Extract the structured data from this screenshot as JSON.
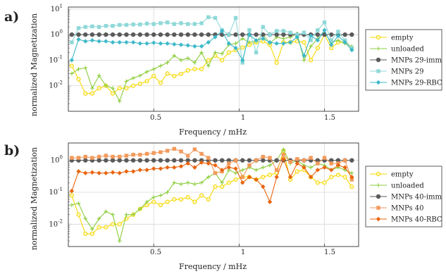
{
  "panels": [
    {
      "panel_label": "a)",
      "xlabel": "Frequency / mHz",
      "ylabel": "normalized Magnetization",
      "x_ticks": [
        "0.5",
        "1",
        "1.5"
      ],
      "y_ticks": [
        "10^1",
        "10^0",
        "10^-1",
        "10^-2"
      ]
    },
    {
      "panel_label": "b)",
      "xlabel": "Frequency / mHz",
      "ylabel": "normalized Magnetization",
      "x_ticks": [
        "0.5",
        "1",
        "1.5"
      ],
      "y_ticks": [
        "10^0",
        "10^-1",
        "10^-2"
      ]
    }
  ],
  "chart_data": [
    {
      "type": "line",
      "title": "",
      "xlabel": "Frequency / mHz",
      "ylabel": "normalized Magnetization",
      "yscale": "log",
      "xlim": [
        0,
        1.7
      ],
      "ylim": [
        0.001,
        12
      ],
      "grid": true,
      "legend_position": "right",
      "x": [
        0.02,
        0.06,
        0.1,
        0.14,
        0.18,
        0.22,
        0.26,
        0.3,
        0.34,
        0.38,
        0.42,
        0.46,
        0.5,
        0.54,
        0.58,
        0.62,
        0.66,
        0.7,
        0.74,
        0.78,
        0.82,
        0.86,
        0.9,
        0.94,
        0.98,
        1.02,
        1.06,
        1.1,
        1.14,
        1.18,
        1.22,
        1.26,
        1.3,
        1.34,
        1.38,
        1.42,
        1.46,
        1.5,
        1.54,
        1.58,
        1.62,
        1.66
      ],
      "series": [
        {
          "name": "empty",
          "color": "#f5d700",
          "marker": "circle-open",
          "values": [
            0.06,
            0.018,
            0.005,
            0.005,
            0.008,
            0.01,
            0.005,
            0.008,
            0.008,
            0.01,
            0.012,
            0.015,
            0.024,
            0.013,
            0.03,
            0.024,
            0.029,
            0.04,
            0.045,
            0.045,
            0.1,
            0.15,
            0.1,
            0.2,
            0.25,
            0.31,
            0.4,
            0.5,
            0.55,
            0.4,
            0.08,
            0.5,
            0.5,
            0.55,
            0.5,
            0.1,
            0.3,
            1.0,
            0.3,
            0.5,
            0.5,
            0.3
          ]
        },
        {
          "name": "unloaded",
          "color": "#8ccd3c",
          "marker": "plus",
          "values": [
            0.03,
            0.045,
            0.05,
            0.008,
            0.025,
            0.01,
            0.008,
            0.0025,
            0.015,
            0.02,
            0.025,
            0.035,
            0.045,
            0.06,
            0.08,
            0.15,
            0.1,
            0.12,
            0.08,
            0.2,
            0.06,
            0.2,
            0.18,
            0.4,
            0.45,
            0.7,
            0.5,
            0.55,
            1.0,
            0.45,
            0.8,
            0.7,
            0.8,
            1.1,
            0.1,
            0.35,
            0.7,
            1.2,
            0.5,
            0.6,
            0.45,
            0.35
          ]
        },
        {
          "name": "MNPs 29-imm",
          "color": "#5a5a5a",
          "marker": "circle-filled",
          "values": [
            1,
            1,
            1,
            1,
            1,
            1,
            1,
            1,
            1,
            1,
            1,
            1,
            1,
            1,
            1,
            1,
            1,
            1,
            1,
            1,
            1,
            1,
            1,
            1,
            1,
            1,
            1,
            1,
            1,
            1,
            1,
            1,
            1,
            1,
            1,
            1,
            1,
            1,
            1,
            1,
            1,
            1
          ]
        },
        {
          "name": "MNPs 29",
          "color": "#8fd8d8",
          "marker": "square",
          "values": [
            0.5,
            1.8,
            2.0,
            2.1,
            2.0,
            2.2,
            2.2,
            2.4,
            2.4,
            2.5,
            2.5,
            2.7,
            2.6,
            2.8,
            3.0,
            2.6,
            2.8,
            2.6,
            2.6,
            2.8,
            4.8,
            4.5,
            1.5,
            1.0,
            4.5,
            0.08,
            1.5,
            0.2,
            2.0,
            1.0,
            1.4,
            1.4,
            1.2,
            1.0,
            1.2,
            0.6,
            1.5,
            3.0,
            0.6,
            1.3,
            0.6,
            0.3
          ]
        },
        {
          "name": "MNPs 29-RBC",
          "color": "#3eb9c9",
          "marker": "diamond",
          "values": [
            0.1,
            0.65,
            0.55,
            0.6,
            0.55,
            0.55,
            0.5,
            0.5,
            0.5,
            0.5,
            0.45,
            0.45,
            0.48,
            0.45,
            0.45,
            0.42,
            0.4,
            0.38,
            0.35,
            0.35,
            0.5,
            0.8,
            1.4,
            0.45,
            0.3,
            0.1,
            1.0,
            0.6,
            0.7,
            0.5,
            0.45,
            0.45,
            0.5,
            0.8,
            0.15,
            0.9,
            0.6,
            1.5,
            0.4,
            0.9,
            0.5,
            0.25
          ]
        }
      ]
    },
    {
      "type": "line",
      "title": "",
      "xlabel": "Frequency / mHz",
      "ylabel": "normalized Magnetization",
      "yscale": "log",
      "xlim": [
        0,
        1.7
      ],
      "ylim": [
        0.002,
        3.5
      ],
      "grid": true,
      "legend_position": "right",
      "x": [
        0.02,
        0.06,
        0.1,
        0.14,
        0.18,
        0.22,
        0.26,
        0.3,
        0.34,
        0.38,
        0.42,
        0.46,
        0.5,
        0.54,
        0.58,
        0.62,
        0.66,
        0.7,
        0.74,
        0.78,
        0.82,
        0.86,
        0.9,
        0.94,
        0.98,
        1.02,
        1.06,
        1.1,
        1.14,
        1.18,
        1.22,
        1.26,
        1.3,
        1.34,
        1.38,
        1.42,
        1.46,
        1.5,
        1.54,
        1.58,
        1.62,
        1.66
      ],
      "series": [
        {
          "name": "empty",
          "color": "#f5d700",
          "marker": "circle-open",
          "values": [
            0.08,
            0.02,
            0.005,
            0.005,
            0.008,
            0.008,
            0.01,
            0.01,
            0.015,
            0.02,
            0.03,
            0.04,
            0.05,
            0.04,
            0.05,
            0.06,
            0.06,
            0.07,
            0.05,
            0.08,
            0.06,
            0.15,
            0.15,
            0.2,
            0.25,
            0.3,
            0.3,
            0.25,
            0.3,
            0.35,
            0.4,
            2.0,
            0.25,
            0.45,
            0.5,
            0.3,
            0.2,
            0.2,
            0.3,
            0.35,
            0.3,
            0.15
          ]
        },
        {
          "name": "unloaded",
          "color": "#8ccd3c",
          "marker": "plus",
          "values": [
            0.04,
            0.045,
            0.015,
            0.007,
            0.015,
            0.025,
            0.02,
            0.003,
            0.02,
            0.02,
            0.03,
            0.05,
            0.07,
            0.08,
            0.1,
            0.2,
            0.18,
            0.2,
            0.18,
            0.2,
            0.3,
            0.4,
            0.2,
            0.5,
            0.4,
            0.5,
            0.6,
            0.5,
            0.6,
            0.7,
            1.0,
            2.2,
            0.8,
            1.0,
            0.7,
            0.6,
            0.8,
            0.7,
            0.5,
            0.6,
            0.5,
            0.4
          ]
        },
        {
          "name": "MNPs 40-imm",
          "color": "#5a5a5a",
          "marker": "circle-filled",
          "values": [
            1,
            1,
            1,
            1,
            1,
            1,
            1,
            1,
            1,
            1,
            1,
            1,
            1,
            1,
            1,
            1,
            1,
            1,
            1,
            1,
            1,
            1,
            1,
            1,
            1,
            1,
            1,
            1,
            1,
            1,
            1,
            1,
            1,
            1,
            1,
            1,
            1,
            1,
            1,
            1,
            1,
            1
          ]
        },
        {
          "name": "MNPs 40",
          "color": "#f29a5c",
          "marker": "square",
          "values": [
            1.2,
            1.2,
            1.3,
            1.2,
            1.3,
            1.4,
            1.3,
            1.3,
            1.4,
            1.5,
            1.5,
            1.6,
            1.7,
            1.8,
            2.0,
            2.3,
            1.9,
            1.4,
            2.2,
            1.6,
            1.2,
            0.4,
            0.45,
            0.8,
            1.0,
            0.3,
            0.7,
            1.0,
            1.3,
            1.2,
            0.5,
            1.5,
            0.9,
            1.1,
            1.0,
            1.2,
            0.8,
            1.2,
            0.8,
            0.8,
            1.0,
            0.25
          ]
        },
        {
          "name": "MNPs 40-RBC",
          "color": "#e8650f",
          "marker": "diamond",
          "values": [
            0.11,
            0.45,
            0.4,
            0.42,
            0.4,
            0.4,
            0.42,
            0.4,
            0.45,
            0.45,
            0.5,
            0.5,
            0.55,
            0.55,
            0.6,
            0.6,
            0.65,
            0.8,
            0.6,
            0.85,
            0.8,
            0.7,
            0.5,
            0.6,
            0.55,
            0.2,
            0.3,
            0.25,
            0.15,
            0.05,
            0.3,
            1.1,
            0.3,
            0.8,
            0.6,
            0.3,
            0.5,
            0.6,
            0.5,
            0.7,
            0.6,
            0.3
          ]
        }
      ]
    }
  ]
}
